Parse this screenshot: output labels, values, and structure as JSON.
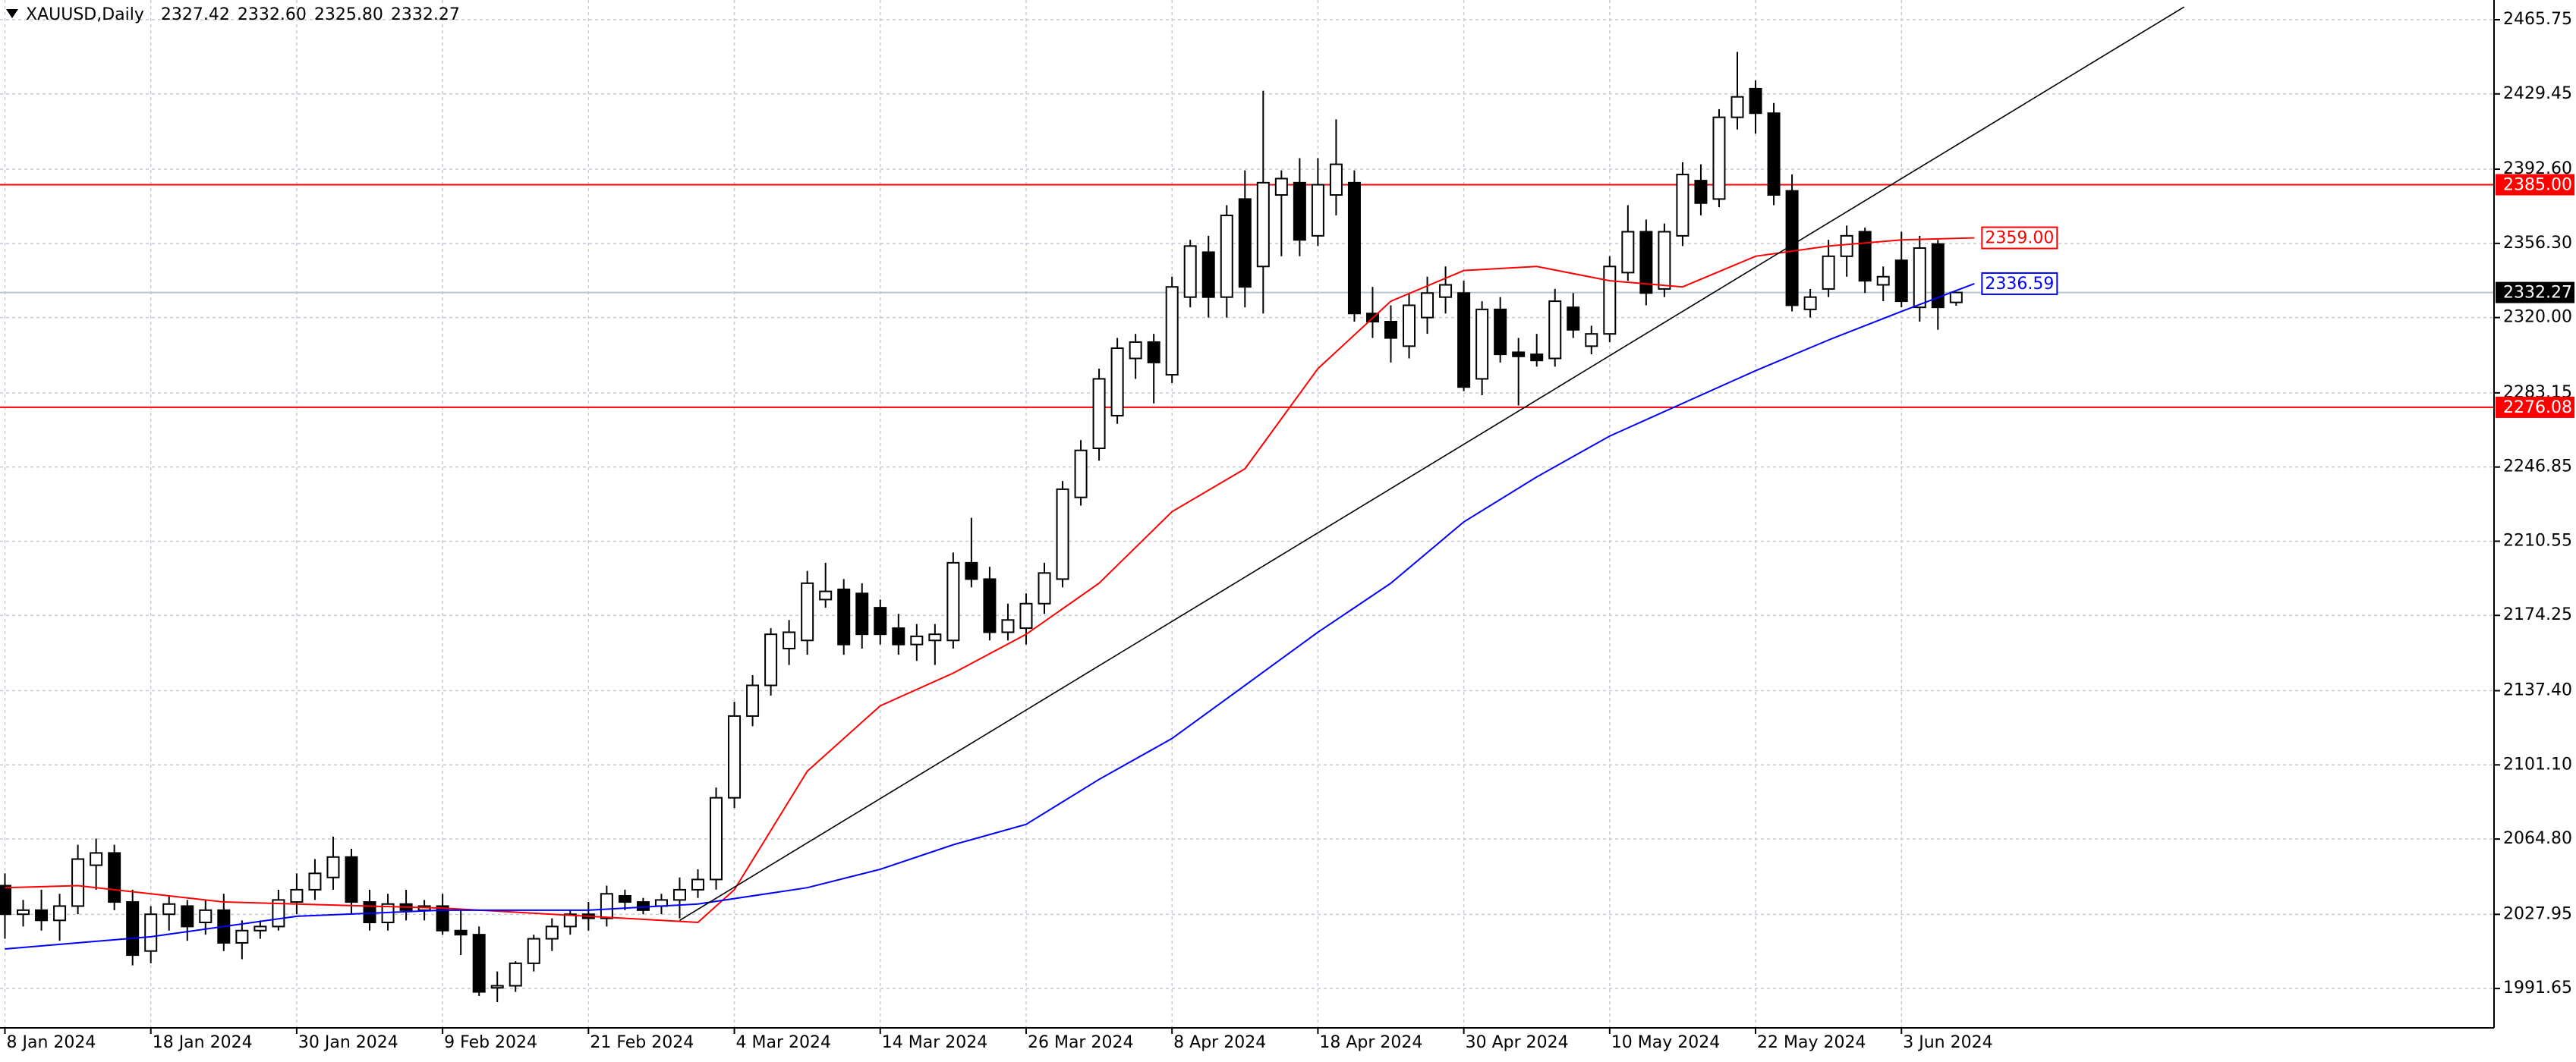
{
  "chart_data": {
    "type": "candlestick",
    "header": {
      "symbol": "XAUUSD,Daily",
      "ohlc": [
        "2327.42",
        "2332.60",
        "2325.80",
        "2332.27"
      ]
    },
    "categories": [
      "8 Jan 2024",
      null,
      null,
      null,
      null,
      null,
      null,
      null,
      "18 Jan 2024",
      null,
      null,
      null,
      null,
      null,
      null,
      null,
      "30 Jan 2024",
      null,
      null,
      null,
      null,
      null,
      null,
      null,
      "9 Feb 2024",
      null,
      null,
      null,
      null,
      null,
      null,
      null,
      "21 Feb 2024",
      null,
      null,
      null,
      null,
      null,
      null,
      null,
      "4 Mar 2024",
      null,
      null,
      null,
      null,
      null,
      null,
      null,
      "14 Mar 2024",
      null,
      null,
      null,
      null,
      null,
      null,
      null,
      "26 Mar 2024",
      null,
      null,
      null,
      null,
      null,
      null,
      null,
      "8 Apr 2024",
      null,
      null,
      null,
      null,
      null,
      null,
      null,
      "18 Apr 2024",
      null,
      null,
      null,
      null,
      null,
      null,
      null,
      "30 Apr 2024",
      null,
      null,
      null,
      null,
      null,
      null,
      null,
      "10 May 2024",
      null,
      null,
      null,
      null,
      null,
      null,
      null,
      "22 May 2024",
      null,
      null,
      null,
      null,
      null,
      null,
      null,
      "3 Jun 2024",
      null,
      null,
      null
    ],
    "open": [
      2042,
      2028,
      2030,
      2025,
      2032,
      2052,
      2058,
      2034,
      2010,
      2028,
      2032,
      2024,
      2030,
      2014,
      2020,
      2022,
      2034,
      2040,
      2046,
      2056,
      2034,
      2024,
      2033,
      2030,
      2032,
      2020,
      2018,
      1992,
      1993,
      2004,
      2016,
      2022,
      2028,
      2026,
      2037,
      2034,
      2032,
      2035,
      2040,
      2045,
      2085,
      2125,
      2140,
      2158,
      2162,
      2182,
      2187,
      2185,
      2178,
      2168,
      2160,
      2162,
      2162,
      2200,
      2192,
      2166,
      2168,
      2180,
      2192,
      2232,
      2256,
      2272,
      2300,
      2308,
      2292,
      2330,
      2352,
      2330,
      2378,
      2345,
      2380,
      2386,
      2360,
      2380,
      2386,
      2322,
      2318,
      2306,
      2320,
      2330,
      2332,
      2290,
      2324,
      2303,
      2302,
      2300,
      2325,
      2306,
      2312,
      2342,
      2362,
      2334,
      2360,
      2387,
      2378,
      2418,
      2432,
      2420,
      2382,
      2324,
      2334,
      2350,
      2362,
      2336,
      2348,
      2325,
      2356,
      2327.42
    ],
    "high": [
      2048,
      2035,
      2040,
      2038,
      2062,
      2065,
      2062,
      2040,
      2032,
      2037,
      2035,
      2035,
      2038,
      2025,
      2025,
      2040,
      2048,
      2055,
      2066,
      2060,
      2040,
      2038,
      2040,
      2035,
      2038,
      2030,
      2022,
      2000,
      2005,
      2018,
      2026,
      2030,
      2034,
      2042,
      2040,
      2036,
      2038,
      2046,
      2050,
      2090,
      2132,
      2145,
      2168,
      2172,
      2196,
      2200,
      2192,
      2190,
      2182,
      2175,
      2170,
      2170,
      2205,
      2222,
      2198,
      2180,
      2185,
      2200,
      2240,
      2260,
      2295,
      2310,
      2312,
      2312,
      2340,
      2358,
      2360,
      2375,
      2392,
      2431,
      2392,
      2398,
      2398,
      2417,
      2392,
      2335,
      2326,
      2332,
      2340,
      2345,
      2338,
      2328,
      2330,
      2310,
      2312,
      2334,
      2332,
      2316,
      2350,
      2375,
      2368,
      2366,
      2396,
      2395,
      2422,
      2450,
      2436,
      2425,
      2390,
      2334,
      2358,
      2365,
      2364,
      2345,
      2362,
      2360,
      2358,
      2332.6
    ],
    "low": [
      2016,
      2022,
      2020,
      2015,
      2028,
      2040,
      2030,
      2003,
      2004,
      2020,
      2015,
      2018,
      2010,
      2006,
      2016,
      2020,
      2028,
      2035,
      2040,
      2028,
      2020,
      2020,
      2025,
      2025,
      2018,
      2008,
      1988,
      1985,
      1990,
      2000,
      2010,
      2018,
      2020,
      2022,
      2030,
      2028,
      2028,
      2026,
      2036,
      2040,
      2080,
      2120,
      2135,
      2150,
      2155,
      2178,
      2155,
      2158,
      2160,
      2155,
      2152,
      2150,
      2158,
      2188,
      2162,
      2162,
      2160,
      2175,
      2188,
      2228,
      2250,
      2268,
      2290,
      2278,
      2288,
      2325,
      2320,
      2320,
      2325,
      2322,
      2350,
      2350,
      2355,
      2370,
      2318,
      2310,
      2298,
      2300,
      2312,
      2322,
      2284,
      2282,
      2298,
      2277,
      2296,
      2296,
      2310,
      2302,
      2308,
      2338,
      2326,
      2330,
      2355,
      2370,
      2374,
      2412,
      2410,
      2375,
      2323,
      2320,
      2330,
      2340,
      2332,
      2328,
      2325,
      2318,
      2314,
      2325.8
    ],
    "close": [
      2028,
      2030,
      2025,
      2032,
      2055,
      2058,
      2034,
      2008,
      2028,
      2033,
      2022,
      2030,
      2014,
      2020,
      2022,
      2035,
      2040,
      2048,
      2056,
      2034,
      2024,
      2033,
      2030,
      2032,
      2020,
      2018,
      1990,
      1993,
      2004,
      2016,
      2022,
      2028,
      2026,
      2038,
      2034,
      2030,
      2035,
      2040,
      2045,
      2085,
      2125,
      2140,
      2165,
      2166,
      2190,
      2186,
      2160,
      2165,
      2165,
      2160,
      2164,
      2165,
      2200,
      2192,
      2166,
      2172,
      2180,
      2195,
      2236,
      2255,
      2290,
      2305,
      2308,
      2298,
      2335,
      2355,
      2330,
      2370,
      2335,
      2386,
      2388,
      2358,
      2385,
      2395,
      2322,
      2318,
      2310,
      2326,
      2332,
      2336,
      2286,
      2324,
      2302,
      2301,
      2299,
      2328,
      2314,
      2312,
      2345,
      2362,
      2332,
      2362,
      2390,
      2376,
      2418,
      2428,
      2420,
      2380,
      2326,
      2330,
      2350,
      2360,
      2338,
      2340,
      2328,
      2354,
      2325,
      2332.27
    ],
    "ma": [
      {
        "color": "#ff0000",
        "label": "2359.00",
        "x": [
          0,
          4,
          8,
          12,
          16,
          20,
          24,
          28,
          32,
          36,
          38,
          40,
          44,
          48,
          52,
          56,
          60,
          64,
          68,
          72,
          76,
          80,
          84,
          88,
          92,
          96,
          100,
          104,
          108
        ],
        "values": [
          2041,
          2042,
          2038,
          2034,
          2033,
          2032,
          2031,
          2029,
          2027,
          2025,
          2024,
          2040,
          2098,
          2130,
          2146,
          2165,
          2190,
          2225,
          2246,
          2295,
          2328,
          2343,
          2345,
          2338,
          2335,
          2350,
          2355,
          2358,
          2359
        ]
      },
      {
        "color": "#0000ff",
        "label": "2336.59",
        "x": [
          0,
          8,
          16,
          24,
          32,
          38,
          44,
          48,
          52,
          56,
          60,
          64,
          68,
          72,
          76,
          80,
          84,
          88,
          92,
          96,
          100,
          104,
          108
        ],
        "values": [
          2011,
          2017,
          2027,
          2030,
          2030,
          2033,
          2041,
          2050,
          2062,
          2072,
          2094,
          2114,
          2140,
          2166,
          2190,
          2220,
          2242,
          2262,
          2278,
          2294,
          2309,
          2323,
          2336.59
        ]
      }
    ],
    "trendline": {
      "x": [
        37,
        119.5
      ],
      "y": [
        2025,
        2472
      ]
    },
    "price_lines": [
      {
        "value": 2385,
        "label": "2385.00",
        "color": "#ff0000"
      },
      {
        "value": 2332.27,
        "label": "2332.27",
        "color": "#b8c4d0"
      },
      {
        "value": 2276.08,
        "label": "2276.08",
        "color": "#ff0000"
      }
    ],
    "ylim": [
      1972.4,
      2475.4
    ],
    "yticks": [
      {
        "value": 1991.65,
        "label": "1991.65"
      },
      {
        "value": 2027.95,
        "label": "2027.95"
      },
      {
        "value": 2064.8,
        "label": "2064.80"
      },
      {
        "value": 2101.1,
        "label": "2101.10"
      },
      {
        "value": 2137.4,
        "label": "2137.40"
      },
      {
        "value": 2174.25,
        "label": "2174.25"
      },
      {
        "value": 2210.55,
        "label": "2210.55"
      },
      {
        "value": 2246.85,
        "label": "2246.85"
      },
      {
        "value": 2283.15,
        "label": "2283.15"
      },
      {
        "value": 2320,
        "label": "2320.00"
      },
      {
        "value": 2356.3,
        "label": "2356.30"
      },
      {
        "value": 2392.6,
        "label": "2392.60"
      },
      {
        "value": 2429.45,
        "label": "2429.45"
      },
      {
        "value": 2465.75,
        "label": "2465.75"
      }
    ],
    "grid": true
  }
}
